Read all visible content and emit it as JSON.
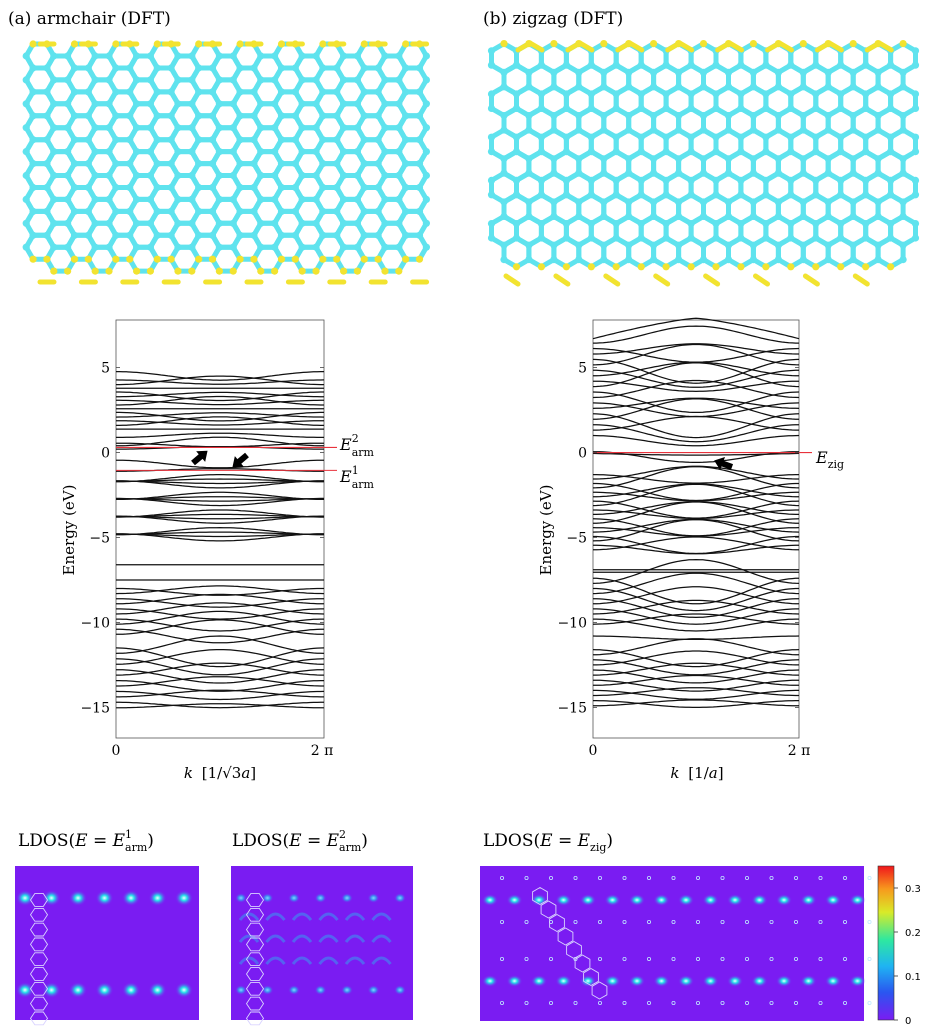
{
  "panels": {
    "a_title": "(a) armchair (DFT)",
    "b_title": "(b) zigzag (DFT)"
  },
  "colors": {
    "carbon": "#5fe3ee",
    "hydrogen": "#f2e330",
    "fermi_line": "#e8323c",
    "ldos_bg": "#7a1cf2",
    "ldos_hot": "#22e0e8",
    "hex_overlay": "#d9d3ff"
  },
  "band_arm": {
    "ylabel": "Energy (eV)",
    "xlabel_k": "k",
    "xlabel_unit_open": "[1/",
    "xlabel_sqrt": "√3",
    "xlabel_a": "a",
    "xlabel_unit_close": "]",
    "xticks": [
      "0",
      "2 π"
    ],
    "yticks": [
      "5",
      "0",
      "−5",
      "−10",
      "−15"
    ],
    "E2_main": "E",
    "E2_sup": "2",
    "E2_sub": "arm",
    "E1_main": "E",
    "E1_sup": "1",
    "E1_sub": "arm",
    "line_E2": 0.3,
    "line_E1": -1.05
  },
  "band_zig": {
    "ylabel": "Energy (eV)",
    "xlabel_k": "k",
    "xlabel_unit_open": "[1/",
    "xlabel_a": "a",
    "xlabel_unit_close": "]",
    "xticks": [
      "0",
      "2 π"
    ],
    "yticks": [
      "5",
      "0",
      "−5",
      "−10",
      "−15"
    ],
    "Ez_main": "E",
    "Ez_sub": "zig",
    "line_Ez": 0.0
  },
  "ldos": {
    "title1_pre": "LDOS(",
    "title1_E": "E",
    "title1_eq": " = ",
    "title1_E2": "E",
    "title1_sup": "1",
    "title1_sub": "arm",
    "title1_post": ")",
    "title2_pre": "LDOS(",
    "title2_E": "E",
    "title2_eq": " = ",
    "title2_E2": "E",
    "title2_sup": "2",
    "title2_sub": "arm",
    "title2_post": ")",
    "title3_pre": "LDOS(",
    "title3_E": "E",
    "title3_eq": " = ",
    "title3_E2": "E",
    "title3_sub": "zig",
    "title3_post": ")"
  },
  "colorbar": {
    "ticks": [
      "0.3",
      "0.2",
      "0.1",
      "0"
    ],
    "values": [
      0.3,
      0.2,
      0.1,
      0
    ],
    "max": 0.35
  }
}
